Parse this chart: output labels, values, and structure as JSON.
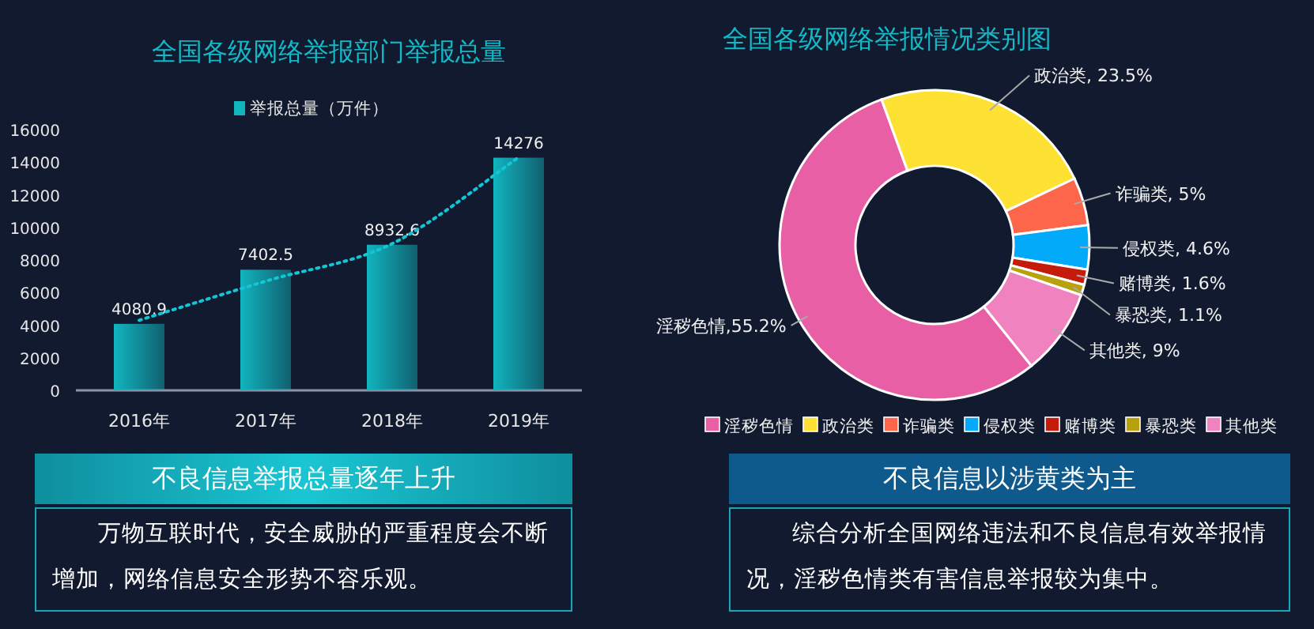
{
  "chart_data": [
    {
      "type": "bar",
      "title": "全国各级网络举报部门举报总量",
      "categories": [
        "2016年",
        "2017年",
        "2018年",
        "2019年"
      ],
      "series": [
        {
          "name": "举报总量（万件）",
          "color": "#11b5c0",
          "values": [
            4080.9,
            7402.5,
            8932.6,
            14276
          ],
          "value_labels": [
            "4080.9",
            "7402.5",
            "8932.6",
            "14276"
          ]
        },
        {
          "type": "line",
          "color": "#13c6d6",
          "x": [
            "2016年",
            "2017年",
            "2018年",
            "2019年"
          ],
          "values": [
            4300,
            6700,
            9000,
            14300
          ],
          "line_style": "dotted",
          "marker": "none"
        }
      ],
      "ylim": [
        0,
        16000
      ],
      "yticks": [
        0,
        2000,
        4000,
        6000,
        8000,
        10000,
        12000,
        14000,
        16000
      ],
      "grid": false,
      "legend": "top",
      "annotations": [
        "不良信息举报总量逐年上升",
        "万物互联时代，安全威胁的严重程度会不断增加，网络信息安全形势不容乐观。"
      ]
    },
    {
      "type": "donut",
      "title": "全国各级网络举报情况类别图",
      "categories": [
        "淫秽色情",
        "政治类",
        "诈骗类",
        "侵权类",
        "赌博类",
        "暴恐类",
        "其他类"
      ],
      "values": [
        55.2,
        23.5,
        5,
        4.6,
        1.6,
        1.1,
        9
      ],
      "colors": [
        "#e95fa6",
        "#fde133",
        "#fe664c",
        "#03aaf9",
        "#c41b0a",
        "#b8a10c",
        "#f082c0"
      ],
      "value_labels": [
        "淫秽色情,55.2%",
        "政治类, 23.5%",
        "诈骗类, 5%",
        "侵权类, 4.6%",
        "赌博类, 1.6%",
        "暴恐类, 1.1%",
        "其他类, 9%"
      ],
      "legend": "bottom",
      "annotations": [
        "不良信息以涉黄类为主",
        "综合分析全国网络违法和不良信息有效举报情况，淫秽色情类有害信息举报较为集中。"
      ]
    }
  ]
}
